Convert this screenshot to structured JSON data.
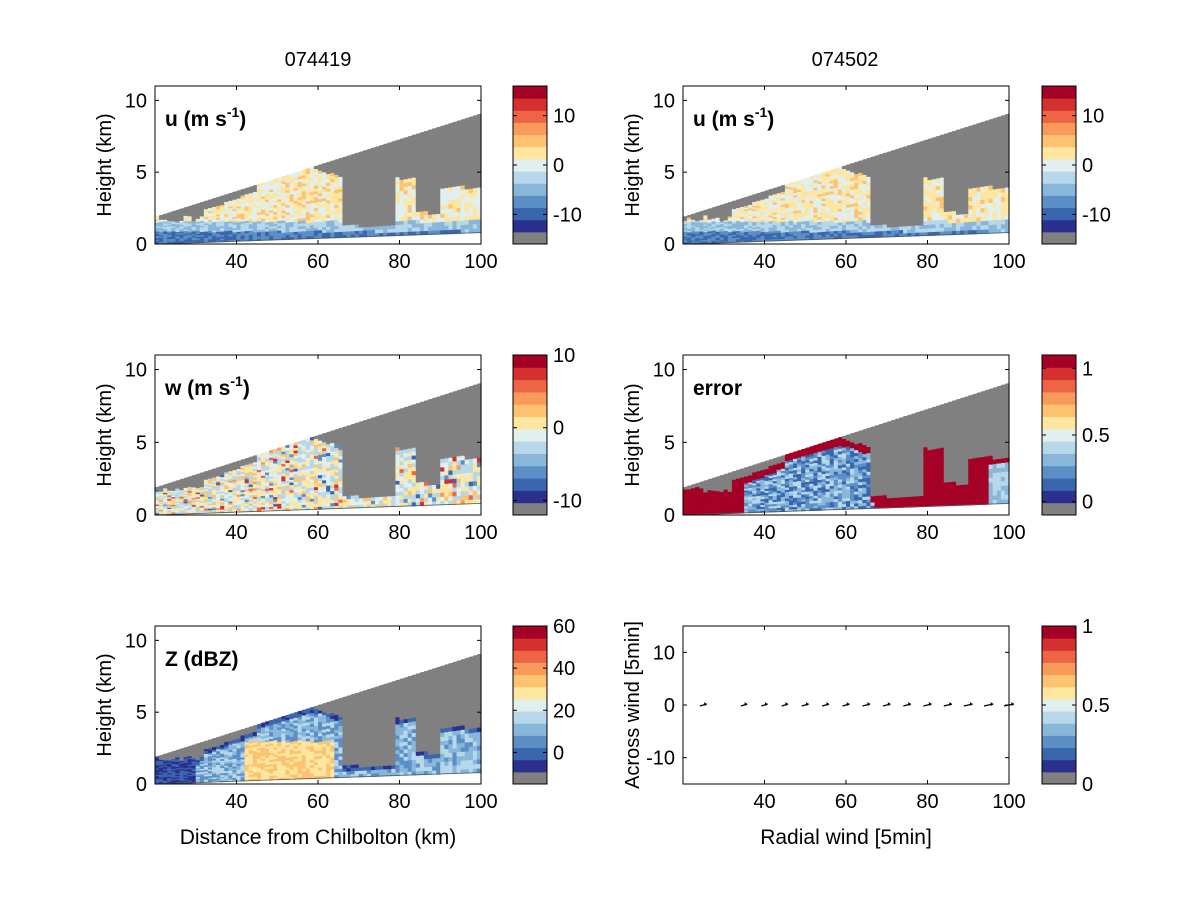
{
  "figure": {
    "column_titles": [
      "074419",
      "074502"
    ],
    "panels": [
      {
        "id": "u-left",
        "label": "u (m s",
        "label_sup": "-1",
        "label_tail": ")",
        "ylabel": "Height (km)",
        "xlabel": "",
        "xticks": [
          "40",
          "60",
          "80",
          "100"
        ],
        "yticks": [
          "0",
          "5",
          "10"
        ],
        "colorbar": {
          "ticks": [
            "10",
            "0",
            "-10"
          ],
          "tick_values": [
            10,
            0,
            -10
          ],
          "range": [
            -16,
            16
          ]
        }
      },
      {
        "id": "u-right",
        "label": "u (m s",
        "label_sup": "-1",
        "label_tail": ")",
        "ylabel": "Height (km)",
        "xlabel": "",
        "xticks": [
          "40",
          "60",
          "80",
          "100"
        ],
        "yticks": [
          "0",
          "5",
          "10"
        ],
        "colorbar": {
          "ticks": [
            "10",
            "0",
            "-10"
          ],
          "tick_values": [
            10,
            0,
            -10
          ],
          "range": [
            -16,
            16
          ]
        }
      },
      {
        "id": "w-left",
        "label": "w (m s",
        "label_sup": "-1",
        "label_tail": ")",
        "ylabel": "Height (km)",
        "xlabel": "",
        "xticks": [
          "40",
          "60",
          "80",
          "100"
        ],
        "yticks": [
          "0",
          "5",
          "10"
        ],
        "colorbar": {
          "ticks": [
            "10",
            "0",
            "-10"
          ],
          "tick_values": [
            10,
            0,
            -10
          ],
          "range": [
            -12,
            10
          ]
        }
      },
      {
        "id": "error-right",
        "label": "error",
        "label_sup": "",
        "label_tail": "",
        "ylabel": "Height (km)",
        "xlabel": "",
        "xticks": [
          "40",
          "60",
          "80",
          "100"
        ],
        "yticks": [
          "0",
          "5",
          "10"
        ],
        "colorbar": {
          "ticks": [
            "1",
            "0.5",
            "0"
          ],
          "tick_values": [
            1,
            0.5,
            0
          ],
          "range": [
            -0.1,
            1.1
          ]
        }
      },
      {
        "id": "z-left",
        "label": "Z (dBZ)",
        "label_sup": "",
        "label_tail": "",
        "ylabel": "Height (km)",
        "xlabel": "Distance from Chilbolton (km)",
        "xticks": [
          "40",
          "60",
          "80",
          "100"
        ],
        "yticks": [
          "0",
          "5",
          "10"
        ],
        "colorbar": {
          "ticks": [
            "60",
            "40",
            "20",
            "0"
          ],
          "tick_values": [
            60,
            40,
            20,
            0
          ],
          "range": [
            -15,
            60
          ]
        }
      },
      {
        "id": "wind-right",
        "label": "",
        "label_sup": "",
        "label_tail": "",
        "ylabel": "Across wind [5min]",
        "xlabel": "Radial wind [5min]",
        "xticks": [
          "40",
          "60",
          "80",
          "100"
        ],
        "yticks": [
          "10",
          "0",
          "-10"
        ],
        "colorbar": {
          "ticks": [
            "1",
            "0.5",
            "0"
          ],
          "tick_values": [
            1,
            0.5,
            0
          ],
          "range": [
            0,
            1
          ]
        }
      }
    ]
  },
  "chart_data": [
    {
      "type": "heatmap",
      "title": "074419",
      "label": "u (m s-1)",
      "ylabel": "Height (km)",
      "xlim": [
        20,
        100
      ],
      "ylim": [
        0,
        11
      ],
      "grid": false,
      "colorbar_levels": [
        -16,
        16
      ],
      "legend": "colorbar right",
      "data_top_km": [
        1.9,
        9.1
      ],
      "field_summary": "mostly 0 to 5 m/s aloft (2-4 km), -5 to -10 m/s near surface"
    },
    {
      "type": "heatmap",
      "title": "074502",
      "label": "u (m s-1)",
      "ylabel": "Height (km)",
      "xlim": [
        20,
        100
      ],
      "ylim": [
        0,
        11
      ],
      "grid": false,
      "colorbar_levels": [
        -16,
        16
      ],
      "legend": "colorbar right"
    },
    {
      "type": "heatmap",
      "label": "w (m s-1)",
      "ylabel": "Height (km)",
      "xlim": [
        20,
        100
      ],
      "ylim": [
        0,
        11
      ],
      "grid": false,
      "colorbar_levels": [
        -12,
        10
      ],
      "legend": "colorbar right"
    },
    {
      "type": "heatmap",
      "label": "error",
      "ylabel": "Height (km)",
      "xlim": [
        20,
        100
      ],
      "ylim": [
        0,
        11
      ],
      "grid": false,
      "colorbar_levels": [
        -0.1,
        1.1
      ],
      "legend": "colorbar right"
    },
    {
      "type": "heatmap",
      "label": "Z (dBZ)",
      "ylabel": "Height (km)",
      "xlabel": "Distance from Chilbolton (km)",
      "xlim": [
        20,
        100
      ],
      "ylim": [
        0,
        11
      ],
      "grid": false,
      "colorbar_levels": [
        -15,
        60
      ],
      "legend": "colorbar right"
    },
    {
      "type": "scatter",
      "xlabel": "Radial wind [5min]",
      "ylabel": "Across wind [5min]",
      "xlim": [
        20,
        100
      ],
      "ylim": [
        -15,
        15
      ],
      "grid": false,
      "x": [
        25,
        35,
        40,
        45,
        50,
        55,
        60,
        65,
        70,
        75,
        80,
        85,
        90,
        95,
        100
      ],
      "y": [
        0,
        0,
        0,
        0,
        0,
        0,
        0,
        0,
        0,
        0,
        0,
        0,
        0,
        0,
        0
      ],
      "arrow_lengths": [
        0.5,
        0.4,
        0.4,
        0.4,
        0.5,
        0.5,
        0.5,
        0.6,
        0.6,
        0.6,
        0.7,
        0.7,
        0.8,
        0.9,
        1.0
      ]
    }
  ],
  "colors": {
    "palette": [
      "#2b2f8e",
      "#3a66ae",
      "#5b8fc5",
      "#88b7da",
      "#b6d8ea",
      "#e1efee",
      "#fde6a0",
      "#fdc371",
      "#f89a5a",
      "#ee6545",
      "#d3302e",
      "#a50026"
    ],
    "missing": "#808080",
    "arrow": "#000000"
  }
}
